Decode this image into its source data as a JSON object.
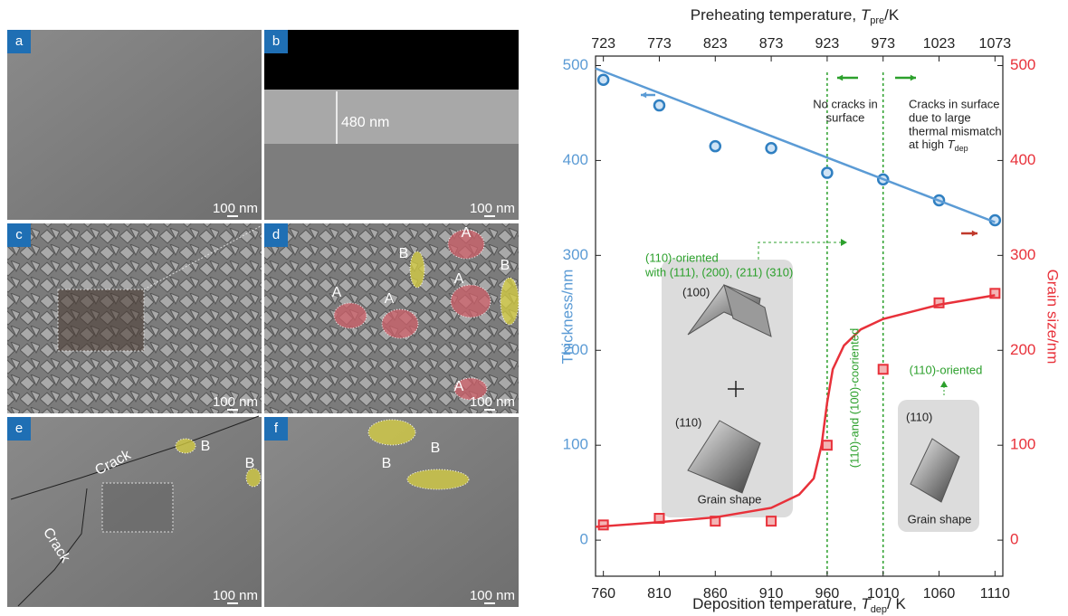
{
  "panels": [
    {
      "label": "a",
      "scale_bar": "100 nm",
      "notes": []
    },
    {
      "label": "b",
      "scale_bar": "100 nm",
      "notes": [
        "480 nm"
      ]
    },
    {
      "label": "c",
      "scale_bar": "100 nm",
      "notes": []
    },
    {
      "label": "d",
      "scale_bar": "100 nm",
      "notes": [
        "A",
        "B",
        "A",
        "B",
        "A",
        "A",
        "A"
      ]
    },
    {
      "label": "e",
      "scale_bar": "100 nm",
      "notes": [
        "Crack",
        "Crack",
        "B",
        "B"
      ]
    },
    {
      "label": "f",
      "scale_bar": "100 nm",
      "notes": [
        "B",
        "B"
      ]
    }
  ],
  "chart_data": {
    "type": "scatter",
    "x_label": {
      "text": "Deposition temperature, ",
      "symbol": "T",
      "subscript": "dep",
      "unit": "/ K"
    },
    "x2_label": {
      "text": "Preheating temperature, ",
      "symbol": "T",
      "subscript": "pre",
      "unit": "/K"
    },
    "y_label": "Thickness/nm",
    "y2_label": "Grain size/nm",
    "xlim": [
      753,
      1117
    ],
    "xticks": [
      760,
      810,
      860,
      910,
      960,
      1010,
      1060,
      1110
    ],
    "x2lim": [
      716,
      1080
    ],
    "x2ticks": [
      723,
      773,
      823,
      873,
      923,
      973,
      1023,
      1073
    ],
    "ylim": [
      -38,
      510
    ],
    "yticks": [
      0,
      100,
      200,
      300,
      400,
      500
    ],
    "y2lim": [
      -38,
      510
    ],
    "y2ticks": [
      0,
      100,
      200,
      300,
      400,
      500
    ],
    "series": [
      {
        "type": "scatter",
        "color": "#5b9bd5",
        "x": [
          760,
          810,
          860,
          910,
          960,
          1010,
          1060,
          1110
        ],
        "values": [
          485,
          458,
          415,
          413,
          387,
          380,
          358,
          337
        ]
      },
      {
        "type": "line",
        "color": "#5b9bd5",
        "x": [
          753,
          1110
        ],
        "values": [
          497,
          335
        ]
      },
      {
        "type": "scatter",
        "color": "#e8313a",
        "axis": "y2",
        "x": [
          760,
          810,
          860,
          910,
          960,
          1010,
          1060,
          1110
        ],
        "values": [
          16,
          23,
          20,
          20,
          100,
          180,
          250,
          260
        ]
      },
      {
        "type": "line",
        "color": "#e8313a",
        "axis": "y2",
        "x": [
          753,
          810,
          860,
          910,
          935,
          948,
          955,
          960,
          965,
          975,
          990,
          1010,
          1060,
          1110
        ],
        "values": [
          14,
          19,
          24,
          34,
          48,
          65,
          100,
          145,
          180,
          205,
          222,
          233,
          248,
          258
        ]
      }
    ],
    "annotations": [
      {
        "lines": [
          "No cracks in",
          "surface"
        ],
        "color": "#222222"
      },
      {
        "lines": [
          "Cracks in surface",
          "due to large",
          "thermal mismatch",
          "at high "
        ],
        "symbol": "T",
        "subscript": "dep",
        "color": "#222222"
      },
      {
        "lines": [
          "(110)-oriented",
          "with (111), (200), (211) (310)"
        ],
        "color": "#2ca02c"
      },
      {
        "lines": [
          "(110)-and (100)-cooriented"
        ],
        "color": "#2ca02c"
      },
      {
        "lines": [
          "(110)-oriented"
        ],
        "color": "#2ca02c"
      },
      {
        "lines": [
          "(100)"
        ],
        "color": "#222222"
      },
      {
        "lines": [
          "(110)"
        ],
        "color": "#222222"
      },
      {
        "lines": [
          "Grain shape"
        ],
        "color": "#222222"
      },
      {
        "lines": [
          "(110)"
        ],
        "color": "#222222"
      },
      {
        "lines": [
          "Grain shape"
        ],
        "color": "#222222"
      }
    ]
  }
}
